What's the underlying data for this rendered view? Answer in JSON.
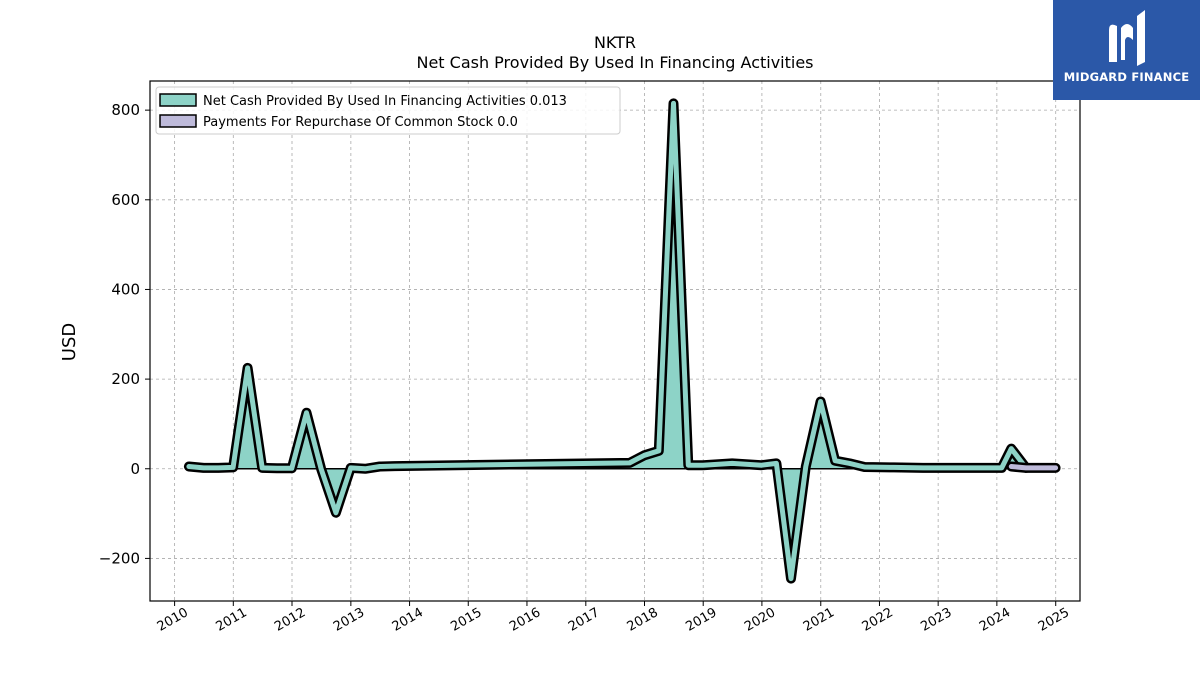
{
  "brand": {
    "name": "MIDGARD FINANCE",
    "bg_color": "#2b58a8",
    "icon": "midgard-m-logo-icon"
  },
  "chart_data": {
    "type": "area",
    "title": "NKTR",
    "subtitle": "Net Cash Provided By Used In Financing Activities",
    "xlabel": "",
    "ylabel": "USD",
    "xlim": [
      "2009-08-01",
      "2025-06-01"
    ],
    "ylim": [
      -295,
      865
    ],
    "x_ticks": [
      "2010",
      "2011",
      "2012",
      "2013",
      "2014",
      "2015",
      "2016",
      "2017",
      "2018",
      "2019",
      "2020",
      "2021",
      "2022",
      "2023",
      "2024",
      "2025"
    ],
    "y_ticks": [
      800,
      600,
      400,
      200,
      0,
      -200
    ],
    "y_tick_labels": [
      "800",
      "600",
      "400",
      "200",
      "0",
      "−200"
    ],
    "grid": true,
    "legend_position": "top-left",
    "series": [
      {
        "name": "Net Cash Provided By Used In Financing Activities",
        "legend_label": "Net Cash Provided By Used In Financing Activities  0.013",
        "color": "#8dd3c7",
        "x": [
          "2010-03-31",
          "2010-06-30",
          "2010-09-30",
          "2010-12-31",
          "2011-03-31",
          "2011-06-30",
          "2011-09-30",
          "2011-12-31",
          "2012-03-31",
          "2012-06-30",
          "2012-09-30",
          "2012-12-31",
          "2013-03-31",
          "2013-06-30",
          "2013-09-30",
          "2017-09-30",
          "2017-12-31",
          "2018-03-31",
          "2018-06-30",
          "2018-09-30",
          "2018-12-31",
          "2019-06-30",
          "2019-12-31",
          "2020-03-31",
          "2020-06-30",
          "2020-09-30",
          "2020-12-31",
          "2021-03-31",
          "2021-06-30",
          "2021-09-30",
          "2022-03-31",
          "2022-09-30",
          "2024-01-31",
          "2024-03-31",
          "2024-06-30"
        ],
        "values": [
          5,
          2,
          2,
          3,
          225,
          2,
          1,
          1,
          125,
          0,
          -98,
          2,
          0,
          5,
          6,
          13,
          30,
          40,
          815,
          8,
          8,
          12,
          8,
          12,
          -245,
          5,
          150,
          18,
          12,
          4,
          3,
          2,
          2,
          45,
          2
        ]
      },
      {
        "name": "Payments For Repurchase Of Common Stock",
        "legend_label": "Payments For Repurchase Of Common Stock  0.0",
        "color": "#bebada",
        "x": [
          "2024-03-31",
          "2024-06-30",
          "2024-09-30",
          "2024-12-31"
        ],
        "values": [
          5,
          2,
          2,
          2
        ]
      }
    ]
  }
}
